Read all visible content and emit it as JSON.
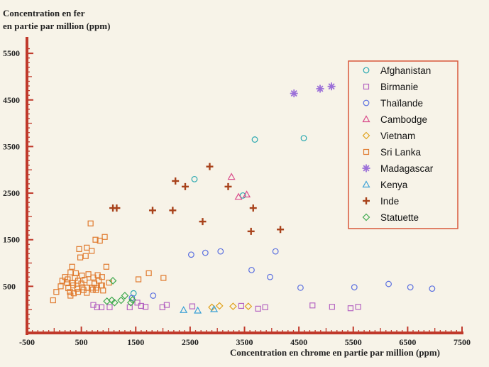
{
  "chart_data": {
    "type": "scatter",
    "title": "",
    "ylabel_line1": "Concentration en fer",
    "ylabel_line2": "en partie par million (ppm)",
    "xlabel": "Concentration en chrome en partie par million (ppm)",
    "xlim": [
      -500,
      7500
    ],
    "ylim": [
      -500,
      5700
    ],
    "x_ticks": [
      -500,
      500,
      1500,
      2500,
      3500,
      4500,
      5500,
      6500,
      7500
    ],
    "x_tick_labels": [
      "-500",
      "500",
      "1500",
      "2500",
      "3500",
      "4500",
      "5500",
      "6500",
      "7500"
    ],
    "y_ticks": [
      500,
      1500,
      2500,
      3500,
      4500,
      5500
    ],
    "y_tick_labels": [
      "500",
      "1500",
      "2500",
      "3500",
      "4500",
      "5500"
    ],
    "legend_position": "top-right",
    "colors": {
      "axis": "#c0392b",
      "legend_border": "#d9583b",
      "background": "#f7f3e8"
    },
    "series": [
      {
        "name": "Afghanistan",
        "marker": "circle",
        "color": "#2aa8b0",
        "points": [
          [
            2580,
            2800
          ],
          [
            3690,
            3650
          ],
          [
            4590,
            3680
          ],
          [
            3470,
            2450
          ],
          [
            1460,
            350
          ]
        ]
      },
      {
        "name": "Birmanie",
        "marker": "square",
        "color": "#b565c2",
        "points": [
          [
            720,
            100
          ],
          [
            790,
            50
          ],
          [
            870,
            50
          ],
          [
            1020,
            50
          ],
          [
            1390,
            50
          ],
          [
            1530,
            150
          ],
          [
            1600,
            80
          ],
          [
            1680,
            60
          ],
          [
            1990,
            50
          ],
          [
            2070,
            100
          ],
          [
            2540,
            70
          ],
          [
            3440,
            80
          ],
          [
            3750,
            20
          ],
          [
            3880,
            50
          ],
          [
            4750,
            90
          ],
          [
            5110,
            60
          ],
          [
            5450,
            30
          ],
          [
            5590,
            60
          ]
        ]
      },
      {
        "name": "Thaïlande",
        "marker": "circle",
        "color": "#5a6fe0",
        "points": [
          [
            1430,
            250
          ],
          [
            1820,
            300
          ],
          [
            2520,
            1180
          ],
          [
            2780,
            1220
          ],
          [
            3060,
            1250
          ],
          [
            3630,
            850
          ],
          [
            3970,
            700
          ],
          [
            4070,
            1250
          ],
          [
            4530,
            470
          ],
          [
            5520,
            480
          ],
          [
            6150,
            550
          ],
          [
            6550,
            480
          ],
          [
            6950,
            450
          ]
        ]
      },
      {
        "name": "Cambodge",
        "marker": "triangle",
        "color": "#d94a8a",
        "points": [
          [
            3260,
            2850
          ],
          [
            3390,
            2420
          ],
          [
            3540,
            2470
          ]
        ]
      },
      {
        "name": "Vietnam",
        "marker": "diamond",
        "color": "#e0a21d",
        "points": [
          [
            3040,
            80
          ],
          [
            3290,
            70
          ],
          [
            3570,
            70
          ],
          [
            2900,
            50
          ]
        ]
      },
      {
        "name": "Sri Lanka",
        "marker": "square",
        "color": "#e07a2e",
        "points": [
          [
            -20,
            200
          ],
          [
            40,
            380
          ],
          [
            120,
            500
          ],
          [
            150,
            620
          ],
          [
            200,
            700
          ],
          [
            230,
            580
          ],
          [
            260,
            460
          ],
          [
            290,
            380
          ],
          [
            300,
            800
          ],
          [
            330,
            920
          ],
          [
            350,
            520
          ],
          [
            380,
            680
          ],
          [
            400,
            780
          ],
          [
            420,
            450
          ],
          [
            440,
            620
          ],
          [
            460,
            1300
          ],
          [
            480,
            1120
          ],
          [
            500,
            560
          ],
          [
            510,
            730
          ],
          [
            540,
            420
          ],
          [
            560,
            640
          ],
          [
            580,
            1150
          ],
          [
            600,
            1330
          ],
          [
            610,
            470
          ],
          [
            630,
            760
          ],
          [
            650,
            580
          ],
          [
            670,
            1850
          ],
          [
            690,
            1260
          ],
          [
            710,
            430
          ],
          [
            720,
            690
          ],
          [
            740,
            560
          ],
          [
            760,
            1500
          ],
          [
            780,
            470
          ],
          [
            800,
            740
          ],
          [
            820,
            620
          ],
          [
            840,
            1480
          ],
          [
            860,
            520
          ],
          [
            880,
            700
          ],
          [
            900,
            410
          ],
          [
            930,
            1560
          ],
          [
            960,
            920
          ],
          [
            1010,
            580
          ],
          [
            1550,
            650
          ],
          [
            1740,
            780
          ],
          [
            2010,
            680
          ],
          [
            300,
            300
          ],
          [
            360,
            350
          ],
          [
            440,
            380
          ],
          [
            520,
            480
          ],
          [
            600,
            360
          ],
          [
            690,
            470
          ],
          [
            770,
            420
          ],
          [
            880,
            520
          ],
          [
            250,
            650
          ],
          [
            330,
            570
          ]
        ]
      },
      {
        "name": "Madagascar",
        "marker": "asterisk",
        "color": "#9b6fd8",
        "points": [
          [
            4410,
            4640
          ],
          [
            4890,
            4740
          ],
          [
            5100,
            4790
          ]
        ]
      },
      {
        "name": "Kenya",
        "marker": "triangle",
        "color": "#3aa0d6",
        "points": [
          [
            2380,
            -10
          ],
          [
            2640,
            -20
          ],
          [
            2940,
            10
          ]
        ]
      },
      {
        "name": "Inde",
        "marker": "cross",
        "color": "#a8421b",
        "points": [
          [
            1080,
            2180
          ],
          [
            1150,
            2180
          ],
          [
            1810,
            2130
          ],
          [
            2180,
            2130
          ],
          [
            2230,
            2760
          ],
          [
            2410,
            2640
          ],
          [
            2730,
            1890
          ],
          [
            2860,
            3070
          ],
          [
            3200,
            2640
          ],
          [
            3620,
            1680
          ],
          [
            3660,
            2180
          ],
          [
            4160,
            1720
          ]
        ]
      },
      {
        "name": "Statuette",
        "marker": "diamond",
        "color": "#3fa94f",
        "points": [
          [
            970,
            180
          ],
          [
            1060,
            200
          ],
          [
            1110,
            150
          ],
          [
            1230,
            200
          ],
          [
            1300,
            300
          ],
          [
            1440,
            210
          ],
          [
            1080,
            620
          ],
          [
            1410,
            150
          ]
        ]
      }
    ]
  }
}
